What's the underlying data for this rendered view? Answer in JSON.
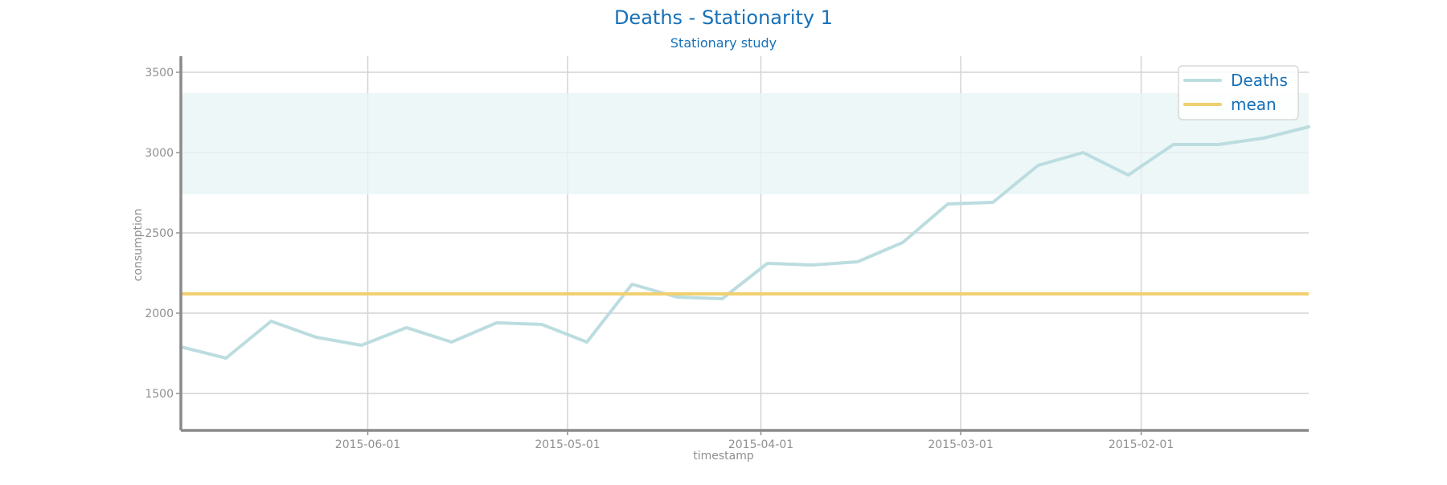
{
  "chart_data": {
    "type": "line",
    "title": "Deaths - Stationarity 1",
    "subtitle": "Stationary study",
    "xlabel": "timestamp",
    "ylabel": "consumption",
    "x_inverted": true,
    "xlim": [
      "2015-06-30",
      "2015-01-06"
    ],
    "ylim": [
      1270,
      3600
    ],
    "x_ticks": [
      "2015-06-01",
      "2015-05-01",
      "2015-04-01",
      "2015-03-01",
      "2015-02-01"
    ],
    "y_ticks": [
      1500,
      2000,
      2500,
      3000,
      3500
    ],
    "grid": true,
    "legend": {
      "placement": "top-right",
      "entries": [
        "Deaths",
        "mean"
      ]
    },
    "colors": {
      "title": "#1570b8",
      "axis_text": "#909090",
      "deaths": "#bcdde0",
      "band": "#e9f5f5",
      "mean": "#f0d070",
      "grid": "#d3d3d3",
      "spine": "#8a8a8a"
    },
    "series": [
      {
        "name": "Deaths",
        "x": [
          "2015-06-30",
          "2015-06-23",
          "2015-06-16",
          "2015-06-09",
          "2015-06-02",
          "2015-05-26",
          "2015-05-19",
          "2015-05-12",
          "2015-05-05",
          "2015-04-28",
          "2015-04-21",
          "2015-04-14",
          "2015-04-07",
          "2015-03-31",
          "2015-03-24",
          "2015-03-17",
          "2015-03-10",
          "2015-03-03",
          "2015-02-24",
          "2015-02-17",
          "2015-02-10",
          "2015-02-03",
          "2015-01-27",
          "2015-01-20",
          "2015-01-13",
          "2015-01-06"
        ],
        "y": [
          1790,
          1720,
          1950,
          1850,
          1800,
          1910,
          1820,
          1940,
          1930,
          1820,
          2180,
          2100,
          2090,
          2310,
          2300,
          2320,
          2440,
          2680,
          2690,
          2920,
          3000,
          2860,
          3050,
          3050,
          3090,
          3160
        ]
      },
      {
        "name": "mean",
        "x": [
          "2015-06-30",
          "2015-01-06"
        ],
        "y": [
          2120,
          2120
        ]
      }
    ],
    "band": {
      "x": [
        "2015-06-30",
        "2015-01-06"
      ],
      "upper": [
        3370,
        3370
      ],
      "lower": [
        2740,
        2740
      ]
    }
  }
}
